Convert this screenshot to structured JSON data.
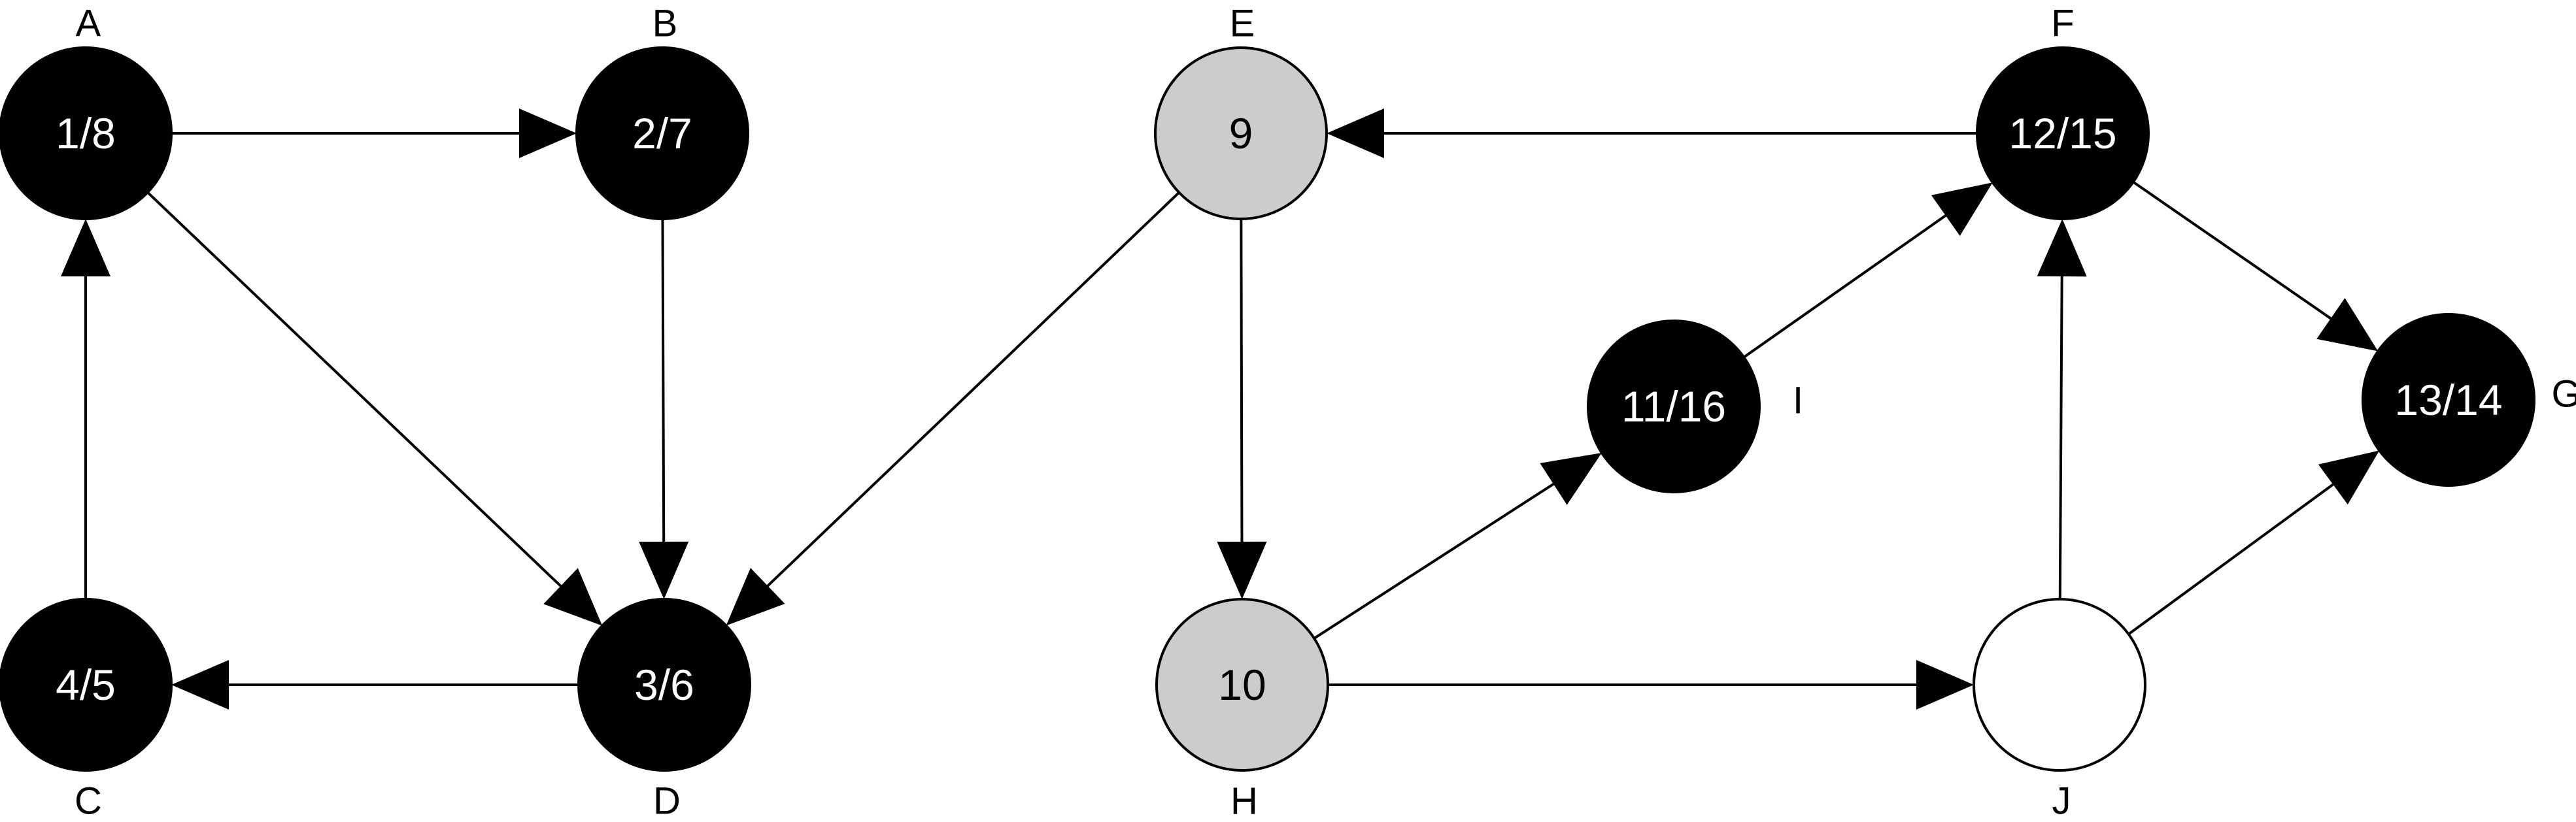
{
  "colors": {
    "finished": "#000000",
    "discovered": "#cccccc",
    "undiscovered": "#ffffff",
    "stroke": "#000000",
    "text_on_dark": "#ffffff",
    "text_on_light": "#000000"
  },
  "nodes": [
    {
      "id": "A",
      "label": "A",
      "value": "1/8",
      "state": "finished"
    },
    {
      "id": "B",
      "label": "B",
      "value": "2/7",
      "state": "finished"
    },
    {
      "id": "C",
      "label": "C",
      "value": "4/5",
      "state": "finished"
    },
    {
      "id": "D",
      "label": "D",
      "value": "3/6",
      "state": "finished"
    },
    {
      "id": "E",
      "label": "E",
      "value": "9",
      "state": "discovered"
    },
    {
      "id": "H",
      "label": "H",
      "value": "10",
      "state": "discovered"
    },
    {
      "id": "I",
      "label": "I",
      "value": "11/16",
      "state": "finished"
    },
    {
      "id": "F",
      "label": "F",
      "value": "12/15",
      "state": "finished"
    },
    {
      "id": "G",
      "label": "G",
      "value": "13/14",
      "state": "finished"
    },
    {
      "id": "J",
      "label": "J",
      "value": "",
      "state": "undiscovered"
    }
  ],
  "edges": [
    {
      "from": "A",
      "to": "B"
    },
    {
      "from": "A",
      "to": "D"
    },
    {
      "from": "B",
      "to": "D"
    },
    {
      "from": "D",
      "to": "C"
    },
    {
      "from": "C",
      "to": "A"
    },
    {
      "from": "E",
      "to": "D"
    },
    {
      "from": "E",
      "to": "H"
    },
    {
      "from": "F",
      "to": "E"
    },
    {
      "from": "H",
      "to": "I"
    },
    {
      "from": "H",
      "to": "J"
    },
    {
      "from": "I",
      "to": "F"
    },
    {
      "from": "F",
      "to": "G"
    },
    {
      "from": "J",
      "to": "F"
    },
    {
      "from": "J",
      "to": "G"
    }
  ]
}
